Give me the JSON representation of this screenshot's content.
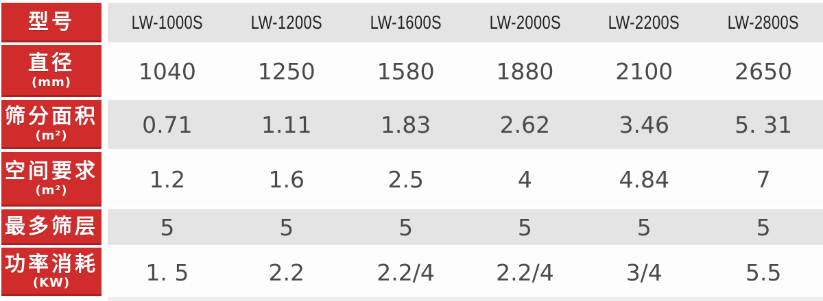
{
  "table": {
    "rows": [
      {
        "label": "型号",
        "unit": "",
        "values": [
          "LW-1000S",
          "LW-1200S",
          "LW-1600S",
          "LW-2000S",
          "LW-2200S",
          "LW-2800S"
        ]
      },
      {
        "label": "直径",
        "unit": "(mm)",
        "values": [
          "1040",
          "1250",
          "1580",
          "1880",
          "2100",
          "2650"
        ]
      },
      {
        "label": "筛分面积",
        "unit": "(m²)",
        "values": [
          "0.71",
          "1.11",
          "1.83",
          "2.62",
          "3.46",
          "5. 31"
        ]
      },
      {
        "label": "空间要求",
        "unit": "(m²)",
        "values": [
          "1.2",
          "1.6",
          "2.5",
          "4",
          "4.84",
          "7"
        ]
      },
      {
        "label": "最多筛层",
        "unit": "",
        "values": [
          "5",
          "5",
          "5",
          "5",
          "5",
          "5"
        ]
      },
      {
        "label": "功率消耗",
        "unit": "(KW)",
        "values": [
          "1. 5",
          "2.2",
          "2.2/4",
          "2.2/4",
          "3/4",
          "5.5"
        ]
      }
    ]
  },
  "colors": {
    "header_red": "#d02c2c",
    "header_red_bottom_edge": "#9e1f1f",
    "band_gray": "#e4e4e4",
    "row_white": "#fdfdfd",
    "separator_white": "#ffffff",
    "value_text": "#4a4a4a",
    "model_text": "#212121",
    "label_text": "#ffffff"
  },
  "chart_data": {
    "type": "table",
    "title": "",
    "row_headers": [
      "型号",
      "直径 (mm)",
      "筛分面积 (m²)",
      "空间要求 (m²)",
      "最多筛层",
      "功率消耗 (KW)"
    ],
    "models": [
      "LW-1000S",
      "LW-1200S",
      "LW-1600S",
      "LW-2000S",
      "LW-2200S",
      "LW-2800S"
    ],
    "diameter_mm": [
      1040,
      1250,
      1580,
      1880,
      2100,
      2650
    ],
    "screening_area_m2": [
      0.71,
      1.11,
      1.83,
      2.62,
      3.46,
      5.31
    ],
    "space_required_m2": [
      1.2,
      1.6,
      2.5,
      4,
      4.84,
      7
    ],
    "max_screen_layers": [
      5,
      5,
      5,
      5,
      5,
      5
    ],
    "power_consumption_kw": [
      "1.5",
      "2.2",
      "2.2/4",
      "2.2/4",
      "3/4",
      "5.5"
    ],
    "layout": {
      "header_column_side": "left",
      "banding": "rows 1,3,5 gray / rows 2,4,6 white",
      "grid": "white separators between rows and after header column"
    }
  }
}
